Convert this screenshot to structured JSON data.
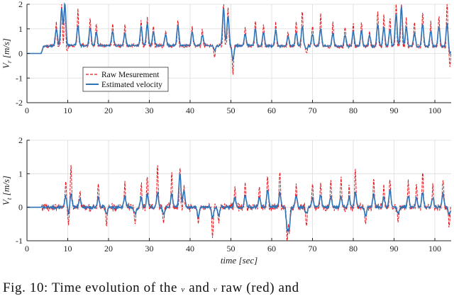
{
  "caption": {
    "parts": [
      "Fig. 10: Time evolution of the ",
      " and ",
      " raw (red) and"
    ],
    "symbols": [
      "v",
      "v"
    ]
  },
  "colors": {
    "raw": "#e8141b",
    "estimated": "#2f74b6",
    "axis": "#222222",
    "grid": "#dcdcdc"
  },
  "chart_data": [
    {
      "type": "line",
      "ylabel": "V_r [m/s]",
      "ylabel_main": "V",
      "ylabel_sub": "r",
      "ylabel_unit": "[m/s]",
      "xlabel": "",
      "xlim": [
        0,
        104
      ],
      "ylim": [
        -2,
        2
      ],
      "xticks": [
        0,
        10,
        20,
        30,
        40,
        50,
        60,
        70,
        80,
        90,
        100
      ],
      "yticks": [
        -2,
        -1,
        0,
        1,
        2
      ],
      "legend": {
        "position": "lower-left",
        "entries": [
          {
            "label": "Raw Mesurement",
            "style": "dashed",
            "series": "raw"
          },
          {
            "label": "Estimated velocity",
            "style": "solid",
            "series": "estimated"
          }
        ]
      },
      "baseline_segments": [
        [
          0,
          0.0
        ],
        [
          3.5,
          0.0
        ],
        [
          4,
          0.28
        ],
        [
          7,
          0.32
        ],
        [
          45,
          0.32
        ],
        [
          60,
          0.3
        ],
        [
          104,
          0.28
        ]
      ],
      "noise_level": {
        "raw": 0.1,
        "estimated": 0.05
      },
      "spikes": [
        {
          "t": 7.2,
          "raw": 0.95,
          "est": 0.7
        },
        {
          "t": 8.5,
          "raw": 1.75,
          "est": 1.5
        },
        {
          "t": 9.3,
          "raw": 2.0,
          "est": 1.7
        },
        {
          "t": 9.8,
          "raw": -0.2,
          "est": 0.0
        },
        {
          "t": 12.5,
          "raw": 1.5,
          "est": 0.8
        },
        {
          "t": 15.5,
          "raw": 1.15,
          "est": 0.75
        },
        {
          "t": 17,
          "raw": 0.85,
          "est": 0.55
        },
        {
          "t": 21,
          "raw": 0.95,
          "est": 0.6
        },
        {
          "t": 24,
          "raw": 0.85,
          "est": 0.5
        },
        {
          "t": 28,
          "raw": 1.0,
          "est": 0.75
        },
        {
          "t": 29.5,
          "raw": 1.2,
          "est": 0.9
        },
        {
          "t": 31,
          "raw": 0.85,
          "est": 0.55
        },
        {
          "t": 34,
          "raw": 0.6,
          "est": 0.45
        },
        {
          "t": 37,
          "raw": 1.0,
          "est": 0.8
        },
        {
          "t": 40.5,
          "raw": 0.8,
          "est": 0.55
        },
        {
          "t": 43,
          "raw": 0.65,
          "est": 0.45
        },
        {
          "t": 46,
          "raw": -0.55,
          "est": -0.2
        },
        {
          "t": 48.2,
          "raw": 1.8,
          "est": 1.5
        },
        {
          "t": 49.3,
          "raw": 1.6,
          "est": 1.2
        },
        {
          "t": 50.5,
          "raw": -1.2,
          "est": -0.55
        },
        {
          "t": 53.5,
          "raw": 0.8,
          "est": 0.5
        },
        {
          "t": 56,
          "raw": 1.0,
          "est": 0.7
        },
        {
          "t": 58,
          "raw": 0.85,
          "est": 0.55
        },
        {
          "t": 61,
          "raw": 1.0,
          "est": 0.65
        },
        {
          "t": 64,
          "raw": 0.6,
          "est": 0.4
        },
        {
          "t": 66,
          "raw": 1.0,
          "est": 0.55
        },
        {
          "t": 67.5,
          "raw": 1.5,
          "est": 0.8
        },
        {
          "t": 68.5,
          "raw": -0.3,
          "est": -0.1
        },
        {
          "t": 70,
          "raw": 0.9,
          "est": 0.5
        },
        {
          "t": 72,
          "raw": 1.3,
          "est": 0.7
        },
        {
          "t": 75,
          "raw": 1.0,
          "est": 0.55
        },
        {
          "t": 78,
          "raw": 0.8,
          "est": 0.45
        },
        {
          "t": 80,
          "raw": 0.9,
          "est": 0.6
        },
        {
          "t": 82,
          "raw": 1.0,
          "est": 0.65
        },
        {
          "t": 84,
          "raw": 0.6,
          "est": 0.45
        },
        {
          "t": 86,
          "raw": 1.5,
          "est": 0.9
        },
        {
          "t": 87.5,
          "raw": 1.3,
          "est": 0.8
        },
        {
          "t": 89,
          "raw": 1.2,
          "est": 0.7
        },
        {
          "t": 90.5,
          "raw": 1.8,
          "est": 1.3
        },
        {
          "t": 91.8,
          "raw": 2.0,
          "est": 1.6
        },
        {
          "t": 93,
          "raw": 1.2,
          "est": 0.8
        },
        {
          "t": 95,
          "raw": 1.0,
          "est": 0.55
        },
        {
          "t": 97,
          "raw": 1.4,
          "est": 0.9
        },
        {
          "t": 99,
          "raw": 1.0,
          "est": 0.65
        },
        {
          "t": 101,
          "raw": 1.3,
          "est": 0.8
        },
        {
          "t": 103,
          "raw": 1.8,
          "est": 0.9
        },
        {
          "t": 103.7,
          "raw": -0.85,
          "est": -0.3
        }
      ]
    },
    {
      "type": "line",
      "ylabel": "V_t [m/s]",
      "ylabel_main": "V",
      "ylabel_sub": "t",
      "ylabel_unit": "[m/s]",
      "xlabel": "time [sec]",
      "xlim": [
        0,
        104
      ],
      "ylim": [
        -1,
        2
      ],
      "xticks": [
        0,
        10,
        20,
        30,
        40,
        50,
        60,
        70,
        80,
        90,
        100
      ],
      "yticks": [
        -1,
        0,
        1,
        2
      ],
      "baseline_segments": [
        [
          0,
          0.0
        ],
        [
          104,
          0.0
        ]
      ],
      "noise_level": {
        "raw": 0.14,
        "estimated": 0.06
      },
      "spikes": [
        {
          "t": 9.5,
          "raw": 0.85,
          "est": 0.35
        },
        {
          "t": 10.2,
          "raw": -0.6,
          "est": -0.2
        },
        {
          "t": 10.8,
          "raw": 1.25,
          "est": 0.4
        },
        {
          "t": 13,
          "raw": 0.5,
          "est": 0.25
        },
        {
          "t": 17.5,
          "raw": 0.75,
          "est": 0.3
        },
        {
          "t": 19.5,
          "raw": -0.55,
          "est": -0.2
        },
        {
          "t": 24,
          "raw": 0.75,
          "est": 0.3
        },
        {
          "t": 26.5,
          "raw": -0.5,
          "est": -0.2
        },
        {
          "t": 28,
          "raw": 0.7,
          "est": 0.3
        },
        {
          "t": 29.5,
          "raw": 0.95,
          "est": 0.4
        },
        {
          "t": 32,
          "raw": 1.3,
          "est": 0.45
        },
        {
          "t": 33.5,
          "raw": -0.45,
          "est": -0.2
        },
        {
          "t": 35.5,
          "raw": 1.05,
          "est": 0.4
        },
        {
          "t": 37.5,
          "raw": 1.2,
          "est": 1.0
        },
        {
          "t": 38.5,
          "raw": 0.7,
          "est": 0.5
        },
        {
          "t": 42,
          "raw": -0.55,
          "est": -0.3
        },
        {
          "t": 45.5,
          "raw": -0.9,
          "est": -0.35
        },
        {
          "t": 47,
          "raw": -0.5,
          "est": -0.25
        },
        {
          "t": 51,
          "raw": 0.6,
          "est": 0.3
        },
        {
          "t": 53.5,
          "raw": 0.75,
          "est": 0.35
        },
        {
          "t": 57,
          "raw": 0.65,
          "est": 0.3
        },
        {
          "t": 59,
          "raw": 1.0,
          "est": 0.5
        },
        {
          "t": 62,
          "raw": 1.1,
          "est": 0.45
        },
        {
          "t": 63.8,
          "raw": -1.0,
          "est": -0.6
        },
        {
          "t": 64.3,
          "raw": -0.8,
          "est": -0.55
        },
        {
          "t": 66,
          "raw": 0.7,
          "est": 0.35
        },
        {
          "t": 68.5,
          "raw": -0.55,
          "est": -0.2
        },
        {
          "t": 70,
          "raw": 0.75,
          "est": 0.3
        },
        {
          "t": 72,
          "raw": 0.8,
          "est": 0.35
        },
        {
          "t": 74.5,
          "raw": 0.8,
          "est": 0.3
        },
        {
          "t": 77,
          "raw": 0.9,
          "est": 0.3
        },
        {
          "t": 79,
          "raw": 0.6,
          "est": 0.3
        },
        {
          "t": 80.5,
          "raw": 1.1,
          "est": 0.45
        },
        {
          "t": 83,
          "raw": -0.6,
          "est": -0.25
        },
        {
          "t": 85,
          "raw": 0.85,
          "est": 0.4
        },
        {
          "t": 87.5,
          "raw": 0.7,
          "est": 0.3
        },
        {
          "t": 89,
          "raw": 0.85,
          "est": 0.5
        },
        {
          "t": 91,
          "raw": -0.5,
          "est": -0.2
        },
        {
          "t": 93.5,
          "raw": 0.8,
          "est": 0.35
        },
        {
          "t": 95.5,
          "raw": 0.7,
          "est": 0.3
        },
        {
          "t": 97,
          "raw": 1.05,
          "est": 0.45
        },
        {
          "t": 99.5,
          "raw": 0.7,
          "est": 0.3
        },
        {
          "t": 102,
          "raw": 0.85,
          "est": 0.4
        },
        {
          "t": 103.5,
          "raw": -0.6,
          "est": -0.25
        }
      ]
    }
  ]
}
